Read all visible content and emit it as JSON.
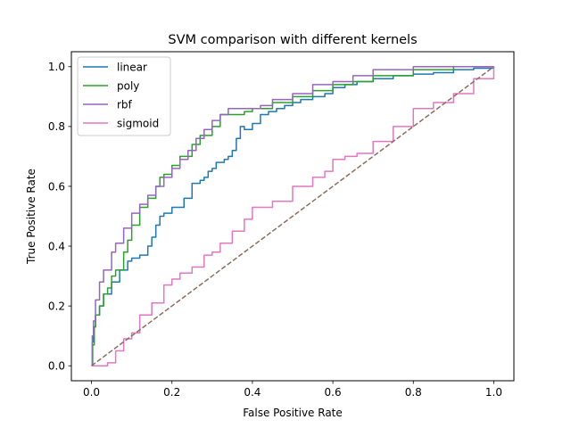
{
  "chart_data": {
    "type": "line",
    "title": "SVM comparison with different kernels",
    "xlabel": "False Positive Rate",
    "ylabel": "True Positive Rate",
    "xlim": [
      -0.05,
      1.05
    ],
    "ylim": [
      -0.05,
      1.05
    ],
    "xticks": [
      0.0,
      0.2,
      0.4,
      0.6,
      0.8,
      1.0
    ],
    "xtick_labels": [
      "0.0",
      "0.2",
      "0.4",
      "0.6",
      "0.8",
      "1.0"
    ],
    "yticks": [
      0.0,
      0.2,
      0.4,
      0.6,
      0.8,
      1.0
    ],
    "ytick_labels": [
      "0.0",
      "0.2",
      "0.4",
      "0.6",
      "0.8",
      "1.0"
    ],
    "grid": false,
    "legend_position": "top-left",
    "series": [
      {
        "name": "linear",
        "color": "#1f77b4",
        "x": [
          0.0,
          0.002,
          0.005,
          0.01,
          0.02,
          0.03,
          0.05,
          0.07,
          0.09,
          0.1,
          0.12,
          0.14,
          0.15,
          0.16,
          0.17,
          0.18,
          0.2,
          0.22,
          0.23,
          0.25,
          0.27,
          0.28,
          0.29,
          0.3,
          0.31,
          0.33,
          0.34,
          0.35,
          0.36,
          0.37,
          0.38,
          0.4,
          0.42,
          0.44,
          0.46,
          0.48,
          0.5,
          0.52,
          0.55,
          0.58,
          0.6,
          0.63,
          0.66,
          0.7,
          0.75,
          0.8,
          0.85,
          0.9,
          0.95,
          1.0
        ],
        "y": [
          0.0,
          0.08,
          0.13,
          0.17,
          0.2,
          0.24,
          0.28,
          0.32,
          0.35,
          0.36,
          0.37,
          0.4,
          0.43,
          0.47,
          0.5,
          0.51,
          0.53,
          0.53,
          0.56,
          0.61,
          0.62,
          0.63,
          0.65,
          0.66,
          0.68,
          0.69,
          0.7,
          0.72,
          0.76,
          0.8,
          0.79,
          0.81,
          0.84,
          0.85,
          0.86,
          0.87,
          0.88,
          0.89,
          0.9,
          0.91,
          0.93,
          0.94,
          0.95,
          0.96,
          0.97,
          0.975,
          0.98,
          0.99,
          0.995,
          1.0
        ]
      },
      {
        "name": "poly",
        "color": "#2ca02c",
        "x": [
          0.0,
          0.003,
          0.007,
          0.01,
          0.02,
          0.03,
          0.04,
          0.05,
          0.06,
          0.08,
          0.09,
          0.1,
          0.12,
          0.14,
          0.16,
          0.17,
          0.18,
          0.2,
          0.22,
          0.25,
          0.27,
          0.3,
          0.32,
          0.35,
          0.38,
          0.4,
          0.45,
          0.5,
          0.55,
          0.6,
          0.65,
          0.7,
          0.8,
          0.9,
          1.0
        ],
        "y": [
          0.0,
          0.07,
          0.13,
          0.17,
          0.2,
          0.24,
          0.26,
          0.3,
          0.32,
          0.38,
          0.42,
          0.47,
          0.53,
          0.56,
          0.6,
          0.63,
          0.64,
          0.67,
          0.7,
          0.74,
          0.77,
          0.8,
          0.84,
          0.84,
          0.85,
          0.86,
          0.88,
          0.9,
          0.92,
          0.94,
          0.95,
          0.97,
          0.99,
          1.0,
          1.0
        ]
      },
      {
        "name": "rbf",
        "color": "#9467bd",
        "x": [
          0.0,
          0.002,
          0.005,
          0.01,
          0.02,
          0.03,
          0.05,
          0.06,
          0.08,
          0.1,
          0.12,
          0.14,
          0.16,
          0.18,
          0.2,
          0.22,
          0.24,
          0.26,
          0.28,
          0.3,
          0.32,
          0.34,
          0.36,
          0.38,
          0.42,
          0.45,
          0.5,
          0.55,
          0.6,
          0.65,
          0.7,
          0.8,
          0.9,
          1.0
        ],
        "y": [
          0.0,
          0.1,
          0.15,
          0.22,
          0.28,
          0.32,
          0.38,
          0.41,
          0.46,
          0.51,
          0.54,
          0.57,
          0.6,
          0.63,
          0.66,
          0.69,
          0.72,
          0.76,
          0.79,
          0.82,
          0.84,
          0.86,
          0.86,
          0.86,
          0.87,
          0.89,
          0.91,
          0.94,
          0.95,
          0.97,
          0.99,
          1.0,
          1.0,
          1.0
        ]
      },
      {
        "name": "sigmoid",
        "color": "#e377c2",
        "x": [
          0.0,
          0.02,
          0.04,
          0.06,
          0.08,
          0.1,
          0.12,
          0.15,
          0.18,
          0.2,
          0.22,
          0.25,
          0.28,
          0.3,
          0.32,
          0.35,
          0.38,
          0.4,
          0.45,
          0.5,
          0.55,
          0.58,
          0.6,
          0.63,
          0.66,
          0.7,
          0.75,
          0.8,
          0.85,
          0.9,
          0.95,
          1.0
        ],
        "y": [
          0.0,
          0.0,
          0.01,
          0.05,
          0.09,
          0.11,
          0.17,
          0.21,
          0.27,
          0.29,
          0.31,
          0.33,
          0.37,
          0.38,
          0.41,
          0.45,
          0.49,
          0.53,
          0.55,
          0.6,
          0.63,
          0.65,
          0.69,
          0.7,
          0.71,
          0.75,
          0.8,
          0.86,
          0.88,
          0.91,
          0.96,
          1.0
        ]
      }
    ],
    "reference_line": {
      "color": "#8c6d5e",
      "x": [
        0.0,
        1.0
      ],
      "y": [
        0.0,
        1.0
      ]
    }
  }
}
